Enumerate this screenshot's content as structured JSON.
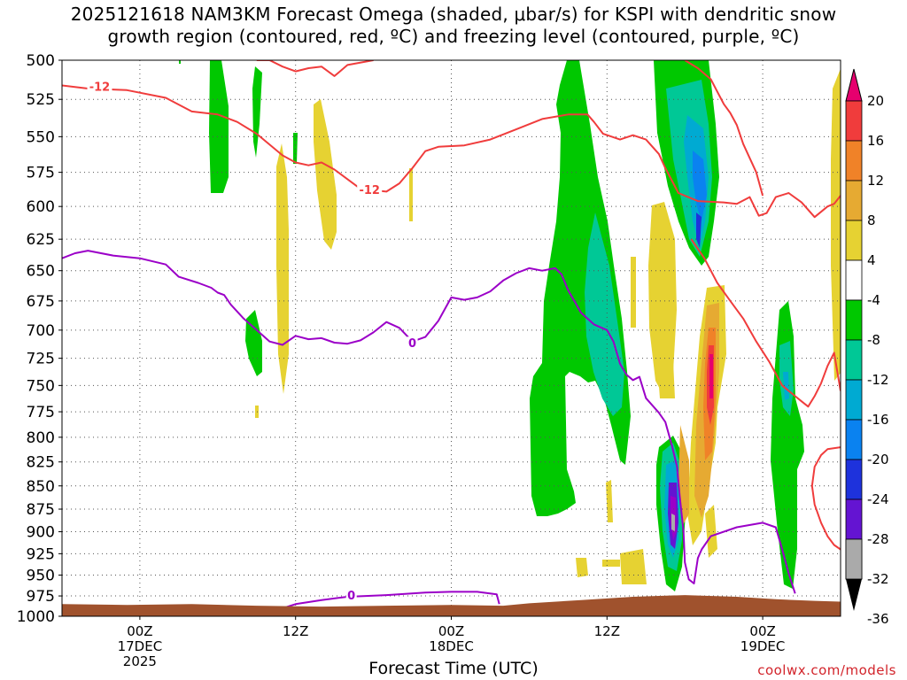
{
  "title": {
    "line1": "2025121618 NAM3KM Forecast Omega (shaded, μbar/s) for KSPI with dendritic snow",
    "line2": "growth region (contoured, red, ºC) and freezing level (contoured, purple, ºC)"
  },
  "x_axis_title": "Forecast Time (UTC)",
  "credit": "coolwx.com/models",
  "colors": {
    "temp_contour": "#f03c3c",
    "freezing_contour": "#9b00c8",
    "ground": "#a0522d",
    "grid": "#555555"
  },
  "chart_data": {
    "type": "heatmap",
    "title": "2025121618 NAM3KM Forecast Omega (shaded, μbar/s) for KSPI with dendritic snow growth region (contoured, red, ºC) and freezing level (contoured, purple, ºC)",
    "xlabel": "Forecast Time (UTC)",
    "ylabel": "",
    "x_range_hours": [
      0,
      60
    ],
    "x_ticks": [
      {
        "hour": 6,
        "lines": [
          "00Z",
          "17DEC",
          "2025"
        ]
      },
      {
        "hour": 18,
        "lines": [
          "12Z"
        ]
      },
      {
        "hour": 30,
        "lines": [
          "00Z",
          "18DEC"
        ]
      },
      {
        "hour": 42,
        "lines": [
          "12Z"
        ]
      },
      {
        "hour": 54,
        "lines": [
          "00Z",
          "19DEC"
        ]
      }
    ],
    "y_ticks_hpa": [
      500,
      525,
      550,
      575,
      600,
      625,
      650,
      675,
      700,
      725,
      750,
      775,
      800,
      825,
      850,
      875,
      900,
      925,
      950,
      975,
      1000
    ],
    "y_scale": "log-pressure",
    "y_range_hpa": [
      500,
      1000
    ],
    "colorbar": {
      "labels": [
        "20",
        "16",
        "12",
        "8",
        "4",
        "-4",
        "-8",
        "-12",
        "-16",
        "-20",
        "-24",
        "-28",
        "-32",
        "-36"
      ],
      "colors": [
        "#e6006e",
        "#f03c3c",
        "#f08228",
        "#e6aa32",
        "#e6d232",
        "#ffffff",
        "#00c800",
        "#00c896",
        "#00aad2",
        "#0a82f0",
        "#1e32dc",
        "#6414d2",
        "#9b00c8",
        "#aaaaaa"
      ]
    },
    "contours": [
      {
        "name": "-12",
        "color": "#f03c3c",
        "labels": [
          {
            "text": "-12",
            "hour": 2.9,
            "hpa": 517
          },
          {
            "text": "-12",
            "hour": 23.7,
            "hpa": 588
          }
        ],
        "segments": [
          [
            [
              0,
              516
            ],
            [
              2,
              518
            ],
            [
              5,
              519
            ],
            [
              8,
              524
            ],
            [
              10,
              533
            ],
            [
              12,
              535
            ],
            [
              13.5,
              540
            ],
            [
              15,
              548
            ],
            [
              17,
              563
            ],
            [
              18,
              568
            ],
            [
              19,
              570
            ],
            [
              20,
              568
            ],
            [
              21,
              573
            ],
            [
              23,
              587
            ],
            [
              24,
              588
            ],
            [
              25,
              589
            ],
            [
              26,
              583
            ],
            [
              27,
              572
            ],
            [
              28,
              560
            ],
            [
              29,
              557
            ],
            [
              31,
              556
            ],
            [
              33,
              552
            ],
            [
              35,
              545
            ],
            [
              37,
              538
            ],
            [
              39,
              535
            ],
            [
              40.5,
              535
            ],
            [
              41,
              540
            ],
            [
              41.7,
              548
            ],
            [
              43,
              552
            ],
            [
              44,
              549
            ],
            [
              45,
              552
            ],
            [
              46,
              562
            ],
            [
              46.5,
              572
            ],
            [
              47.5,
              590
            ],
            [
              49,
              596
            ],
            [
              51,
              597
            ],
            [
              52,
              598
            ],
            [
              53,
              593
            ],
            [
              53.7,
              607
            ],
            [
              54.3,
              605
            ],
            [
              55,
              593
            ],
            [
              56,
              590
            ],
            [
              57,
              597
            ],
            [
              58,
              608
            ],
            [
              59,
              600
            ],
            [
              59.5,
              598
            ],
            [
              60,
              592
            ]
          ],
          [
            [
              48,
              500
            ],
            [
              49,
              505
            ],
            [
              50,
              512
            ],
            [
              50.5,
              520
            ],
            [
              51,
              528
            ],
            [
              51.5,
              534
            ],
            [
              52,
              542
            ],
            [
              52.5,
              555
            ],
            [
              53.5,
              575
            ],
            [
              54,
              592
            ]
          ],
          [
            [
              15,
              500
            ],
            [
              16,
              500
            ],
            [
              17,
              504
            ],
            [
              18,
              507
            ],
            [
              19,
              505
            ],
            [
              20,
              504
            ],
            [
              21,
              510
            ],
            [
              22,
              503
            ],
            [
              24,
              500
            ]
          ],
          [
            [
              48.5,
              625
            ],
            [
              49.5,
              640
            ],
            [
              50.5,
              660
            ],
            [
              51.5,
              675
            ],
            [
              52.5,
              690
            ],
            [
              53.5,
              710
            ],
            [
              54.5,
              728
            ],
            [
              55.5,
              750
            ],
            [
              56.5,
              760
            ],
            [
              57,
              765
            ],
            [
              57.5,
              770
            ],
            [
              58,
              760
            ],
            [
              58.5,
              748
            ],
            [
              59,
              732
            ],
            [
              59.5,
              720
            ],
            [
              60,
              755
            ]
          ],
          [
            [
              60,
              810
            ],
            [
              59,
              812
            ],
            [
              58.5,
              818
            ],
            [
              58,
              830
            ],
            [
              57.8,
              850
            ],
            [
              58,
              870
            ],
            [
              58.5,
              890
            ],
            [
              59,
              905
            ],
            [
              59.5,
              915
            ],
            [
              60,
              920
            ]
          ]
        ]
      },
      {
        "name": "0",
        "color": "#9b00c8",
        "labels": [
          {
            "text": "0",
            "hour": 27.0,
            "hpa": 712
          },
          {
            "text": "0",
            "hour": 22.3,
            "hpa": 975
          }
        ],
        "segments": [
          [
            [
              0,
              640
            ],
            [
              1,
              636
            ],
            [
              2,
              634
            ],
            [
              4,
              638
            ],
            [
              6,
              640
            ],
            [
              8,
              645
            ],
            [
              9,
              655
            ],
            [
              10.5,
              660
            ],
            [
              11.5,
              664
            ],
            [
              12,
              668
            ],
            [
              12.5,
              670
            ],
            [
              13,
              678
            ],
            [
              14,
              690
            ],
            [
              15,
              700
            ],
            [
              16,
              710
            ],
            [
              17,
              713
            ],
            [
              18,
              705
            ],
            [
              19,
              708
            ],
            [
              20,
              707
            ],
            [
              21,
              711
            ],
            [
              22,
              712
            ],
            [
              23,
              709
            ],
            [
              24,
              702
            ],
            [
              25,
              693
            ],
            [
              26,
              698
            ],
            [
              27,
              710
            ],
            [
              28,
              706
            ],
            [
              29,
              692
            ],
            [
              30,
              672
            ],
            [
              31,
              674
            ],
            [
              32,
              672
            ],
            [
              33,
              667
            ],
            [
              34,
              658
            ],
            [
              35,
              652
            ],
            [
              36,
              648
            ],
            [
              37,
              650
            ],
            [
              38,
              648
            ],
            [
              38.5,
              653
            ],
            [
              39,
              666
            ],
            [
              40,
              685
            ],
            [
              41,
              695
            ],
            [
              42,
              700
            ],
            [
              42.5,
              710
            ],
            [
              43,
              730
            ],
            [
              43.5,
              740
            ],
            [
              44,
              745
            ],
            [
              44.5,
              742
            ],
            [
              45,
              762
            ],
            [
              46,
              776
            ],
            [
              46.5,
              785
            ],
            [
              47,
              808
            ],
            [
              47.4,
              830
            ],
            [
              47.6,
              860
            ],
            [
              47.9,
              900
            ],
            [
              48,
              935
            ],
            [
              48.3,
              955
            ],
            [
              48.7,
              960
            ],
            [
              49,
              930
            ],
            [
              49.3,
              920
            ],
            [
              50,
              905
            ],
            [
              52,
              895
            ],
            [
              54,
              890
            ],
            [
              55,
              895
            ],
            [
              55.5,
              920
            ],
            [
              56,
              948
            ],
            [
              56.5,
              972
            ]
          ],
          [
            [
              17,
              990
            ],
            [
              18,
              985
            ],
            [
              20,
              980
            ],
            [
              22,
              976
            ],
            [
              25,
              974
            ],
            [
              28,
              971
            ],
            [
              30,
              970
            ],
            [
              32,
              970
            ],
            [
              33.5,
              973
            ],
            [
              33.7,
              985
            ]
          ]
        ]
      }
    ]
  }
}
